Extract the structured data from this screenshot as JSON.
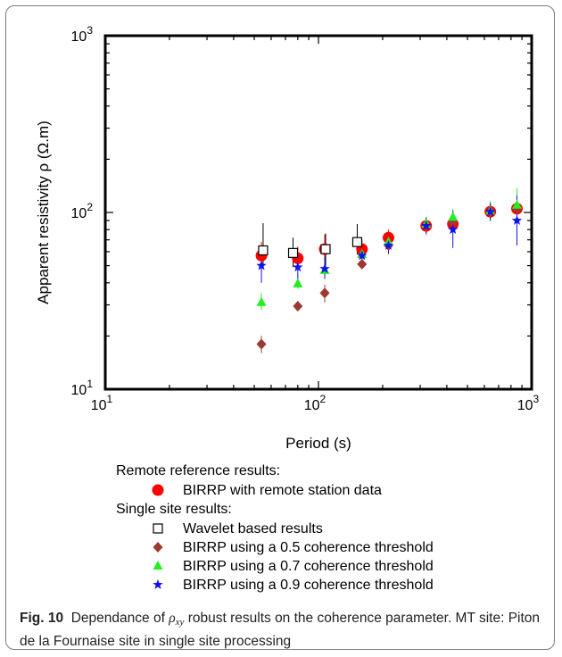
{
  "chart_data": {
    "type": "scatter",
    "xscale": "log",
    "yscale": "log",
    "xlim": [
      10,
      1000
    ],
    "ylim": [
      10,
      1000
    ],
    "xlabel": "Period (s)",
    "ylabel": "Apparent resistivity ρ (Ω.m)",
    "ticks": [
      {
        "value": 10,
        "base": "10",
        "exp": "1"
      },
      {
        "value": 100,
        "base": "10",
        "exp": "2"
      },
      {
        "value": 1000,
        "base": "10",
        "exp": "3"
      }
    ],
    "legend": {
      "group1": "Remote reference results:",
      "group2": "Single site results:"
    },
    "series": [
      {
        "name": "BIRRP with remote station data",
        "marker": "circle",
        "color": "#ff0000",
        "points": [
          {
            "x": 54,
            "y": 57,
            "lo": 46,
            "hi": 68
          },
          {
            "x": 80,
            "y": 55,
            "lo": 47,
            "hi": 64
          },
          {
            "x": 107,
            "y": 62,
            "lo": 52,
            "hi": 75
          },
          {
            "x": 160,
            "y": 62,
            "lo": 56,
            "hi": 70
          },
          {
            "x": 213,
            "y": 72,
            "lo": 66,
            "hi": 80
          },
          {
            "x": 320,
            "y": 84,
            "lo": 75,
            "hi": 92
          },
          {
            "x": 427,
            "y": 86,
            "lo": 78,
            "hi": 96
          },
          {
            "x": 640,
            "y": 101,
            "lo": 90,
            "hi": 112
          },
          {
            "x": 853,
            "y": 105,
            "lo": 93,
            "hi": 118
          }
        ]
      },
      {
        "name": "Wavelet based results",
        "marker": "open-square",
        "color": "#000000",
        "points": [
          {
            "x": 55,
            "y": 61,
            "lo": 50,
            "hi": 87
          },
          {
            "x": 76,
            "y": 59,
            "lo": 49,
            "hi": 72
          },
          {
            "x": 108,
            "y": 62,
            "lo": 49,
            "hi": 76
          },
          {
            "x": 152,
            "y": 68,
            "lo": 58,
            "hi": 86
          }
        ]
      },
      {
        "name": "BIRRP using a 0.5 coherence threshold",
        "marker": "diamond",
        "color": "#9b3a32",
        "points": [
          {
            "x": 54,
            "y": 18,
            "lo": 16,
            "hi": 20
          },
          {
            "x": 80,
            "y": 29.5,
            "lo": 28,
            "hi": 31
          },
          {
            "x": 107,
            "y": 35,
            "lo": 31,
            "hi": 39
          },
          {
            "x": 160,
            "y": 51,
            "lo": 48,
            "hi": 55
          },
          {
            "x": 213,
            "y": 65,
            "lo": 58,
            "hi": 74
          },
          {
            "x": 320,
            "y": 85,
            "lo": 77,
            "hi": 94
          },
          {
            "x": 427,
            "y": 88,
            "lo": 77,
            "hi": 100
          },
          {
            "x": 640,
            "y": 101,
            "lo": 89,
            "hi": 114
          },
          {
            "x": 853,
            "y": 105,
            "lo": 89,
            "hi": 125
          }
        ]
      },
      {
        "name": "BIRRP using a 0.7 coherence threshold",
        "marker": "triangle",
        "color": "#22ee22",
        "points": [
          {
            "x": 54,
            "y": 31,
            "lo": 28,
            "hi": 35
          },
          {
            "x": 80,
            "y": 39.5,
            "lo": 37,
            "hi": 43
          },
          {
            "x": 107,
            "y": 47,
            "lo": 43,
            "hi": 52
          },
          {
            "x": 160,
            "y": 58,
            "lo": 54,
            "hi": 63
          },
          {
            "x": 213,
            "y": 68,
            "lo": 62,
            "hi": 76
          },
          {
            "x": 320,
            "y": 86,
            "lo": 77,
            "hi": 95
          },
          {
            "x": 427,
            "y": 94,
            "lo": 85,
            "hi": 105
          },
          {
            "x": 640,
            "y": 102,
            "lo": 90,
            "hi": 116
          },
          {
            "x": 853,
            "y": 110,
            "lo": 88,
            "hi": 137
          }
        ]
      },
      {
        "name": "BIRRP using a 0.9 coherence threshold",
        "marker": "star",
        "color": "#1111ee",
        "points": [
          {
            "x": 54,
            "y": 50,
            "lo": 40,
            "hi": 62
          },
          {
            "x": 80,
            "y": 49,
            "lo": 42,
            "hi": 57
          },
          {
            "x": 107,
            "y": 48,
            "lo": 42,
            "hi": 56
          },
          {
            "x": 160,
            "y": 57,
            "lo": 52,
            "hi": 63
          },
          {
            "x": 213,
            "y": 65,
            "lo": 59,
            "hi": 72
          },
          {
            "x": 320,
            "y": 84,
            "lo": 76,
            "hi": 93
          },
          {
            "x": 427,
            "y": 80,
            "lo": 63,
            "hi": 102
          },
          {
            "x": 640,
            "y": 101,
            "lo": 91,
            "hi": 113
          },
          {
            "x": 853,
            "y": 90,
            "lo": 65,
            "hi": 125
          }
        ]
      }
    ]
  },
  "caption": {
    "fig_label": "Fig. 10",
    "text_before": "Dependance of",
    "symbol": "ρ",
    "subscript": "xy",
    "text_after": "robust results on the coherence parameter. MT site: Piton de la Fournaise site in single site processing"
  }
}
